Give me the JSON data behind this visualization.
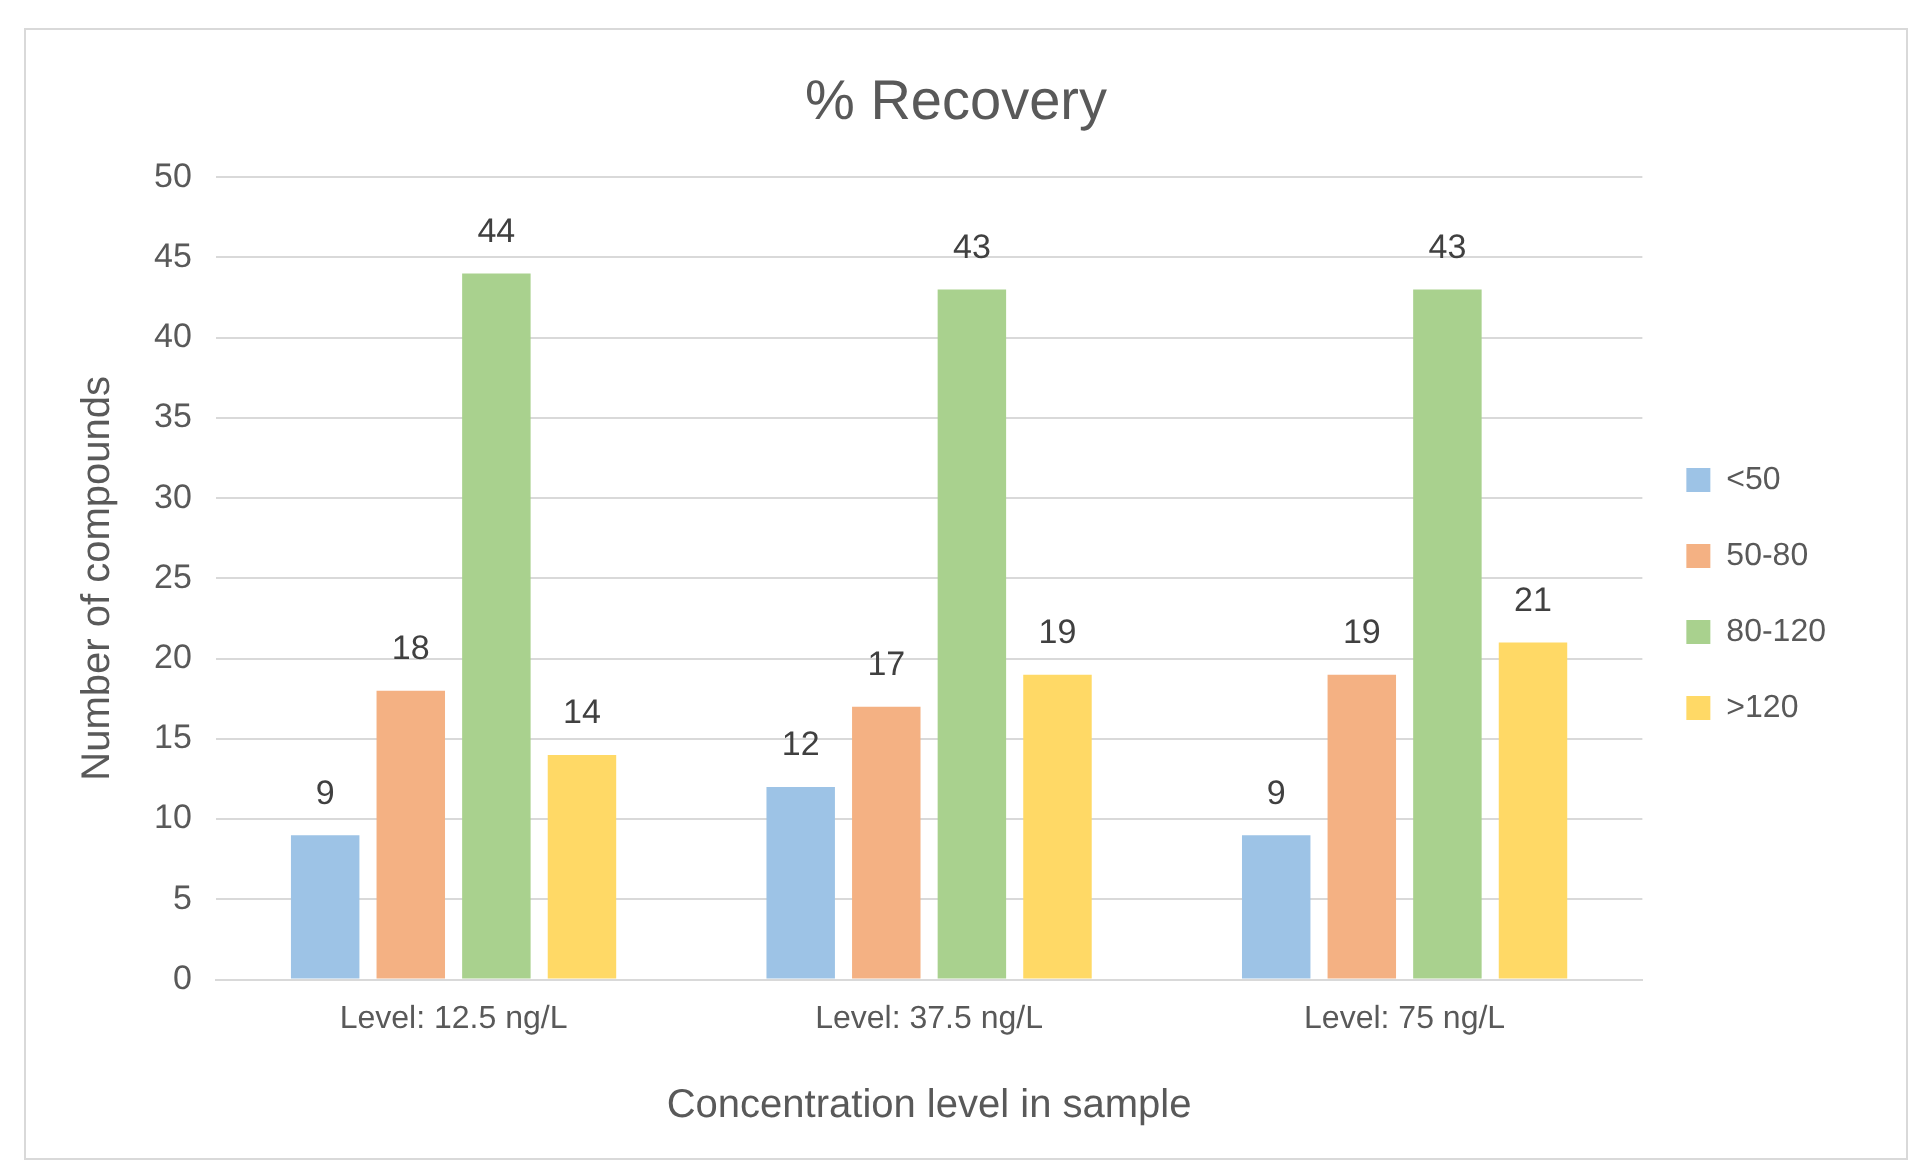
{
  "chart_data": {
    "type": "bar",
    "title": "% Recovery",
    "xlabel": "Concentration level in sample",
    "ylabel": "Number of compounds",
    "categories": [
      "Level: 12.5 ng/L",
      "Level: 37.5 ng/L",
      "Level: 75 ng/L"
    ],
    "series": [
      {
        "name": "<50",
        "color": "#9dc3e6",
        "values": [
          9,
          12,
          9
        ]
      },
      {
        "name": "50-80",
        "color": "#f4b183",
        "values": [
          18,
          17,
          19
        ]
      },
      {
        "name": "80-120",
        "color": "#a9d18e",
        "values": [
          44,
          43,
          43
        ]
      },
      {
        "name": ">120",
        "color": "#ffd966",
        "values": [
          14,
          19,
          21
        ]
      }
    ],
    "ylim": [
      0,
      50
    ],
    "yticks": [
      0,
      5,
      10,
      15,
      20,
      25,
      30,
      35,
      40,
      45,
      50
    ],
    "grid": "y",
    "legend": "right",
    "data_labels": true
  }
}
